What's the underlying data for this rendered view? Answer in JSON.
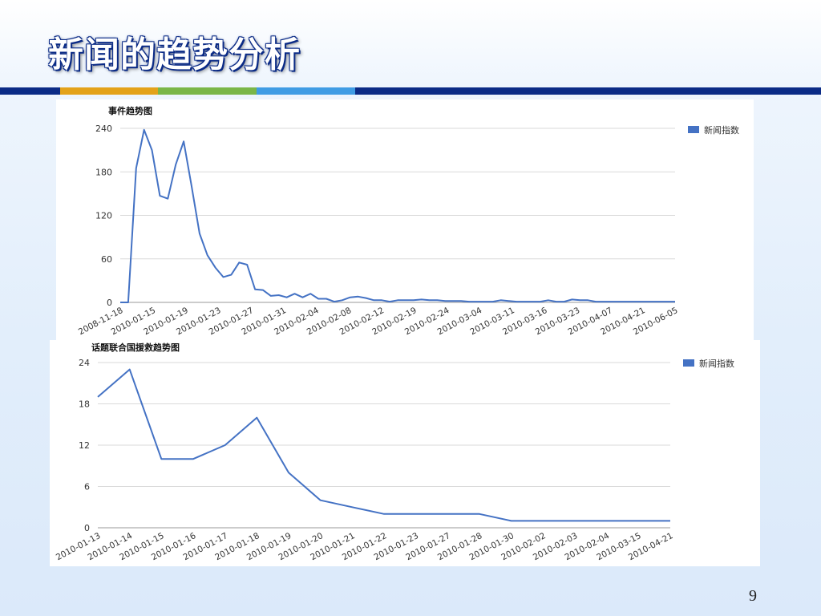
{
  "slide": {
    "title": "新闻的趋势分析",
    "page_number": "9"
  },
  "colors": {
    "title_outline": "#0b2b86",
    "band_navy": "#0b2b86",
    "band_orange": "#e3a21a",
    "band_green": "#7ab648",
    "band_blue": "#3f9ce4",
    "series_line": "#4472c4",
    "grid": "#d9d9d9"
  },
  "chart_data": [
    {
      "type": "line",
      "title": "事件趋势图",
      "xlabel": "",
      "ylabel": "",
      "ylim": [
        0,
        240
      ],
      "yticks": [
        0,
        60,
        120,
        180,
        240
      ],
      "x_tick_labels": [
        "2008-11-18",
        "2010-01-15",
        "2010-01-19",
        "2010-01-23",
        "2010-01-27",
        "2010-01-31",
        "2010-02-04",
        "2010-02-08",
        "2010-02-12",
        "2010-02-19",
        "2010-02-24",
        "2010-03-04",
        "2010-03-11",
        "2010-03-16",
        "2010-03-23",
        "2010-04-07",
        "2010-04-21",
        "2010-06-05"
      ],
      "grid": true,
      "legend": "right",
      "series": [
        {
          "name": "新闻指数",
          "values": [
            0,
            0,
            185,
            238,
            210,
            147,
            143,
            190,
            222,
            160,
            95,
            65,
            48,
            35,
            38,
            55,
            52,
            18,
            17,
            9,
            10,
            7,
            12,
            7,
            12,
            5,
            5,
            1,
            3,
            7,
            8,
            6,
            3,
            3,
            1,
            3,
            3,
            3,
            4,
            3,
            3,
            2,
            2,
            2,
            1,
            1,
            1,
            1,
            3,
            2,
            1,
            1,
            1,
            1,
            3,
            1,
            1,
            4,
            3,
            3,
            1,
            1,
            1,
            1,
            1,
            1,
            1,
            1,
            1,
            1,
            1
          ]
        }
      ]
    },
    {
      "type": "line",
      "title": "话题联合国援救趋势图",
      "xlabel": "",
      "ylabel": "",
      "ylim": [
        0,
        24
      ],
      "yticks": [
        0,
        6,
        12,
        18,
        24
      ],
      "categories": [
        "2010-01-13",
        "2010-01-14",
        "2010-01-15",
        "2010-01-16",
        "2010-01-17",
        "2010-01-18",
        "2010-01-19",
        "2010-01-20",
        "2010-01-21",
        "2010-01-22",
        "2010-01-23",
        "2010-01-27",
        "2010-01-28",
        "2010-01-30",
        "2010-02-02",
        "2010-02-03",
        "2010-02-04",
        "2010-03-15",
        "2010-04-21"
      ],
      "grid": true,
      "legend": "right",
      "series": [
        {
          "name": "新闻指数",
          "values": [
            19,
            23,
            10,
            10,
            12,
            16,
            8,
            4,
            3,
            2,
            2,
            2,
            2,
            1,
            1,
            1,
            1,
            1,
            1
          ]
        }
      ]
    }
  ]
}
